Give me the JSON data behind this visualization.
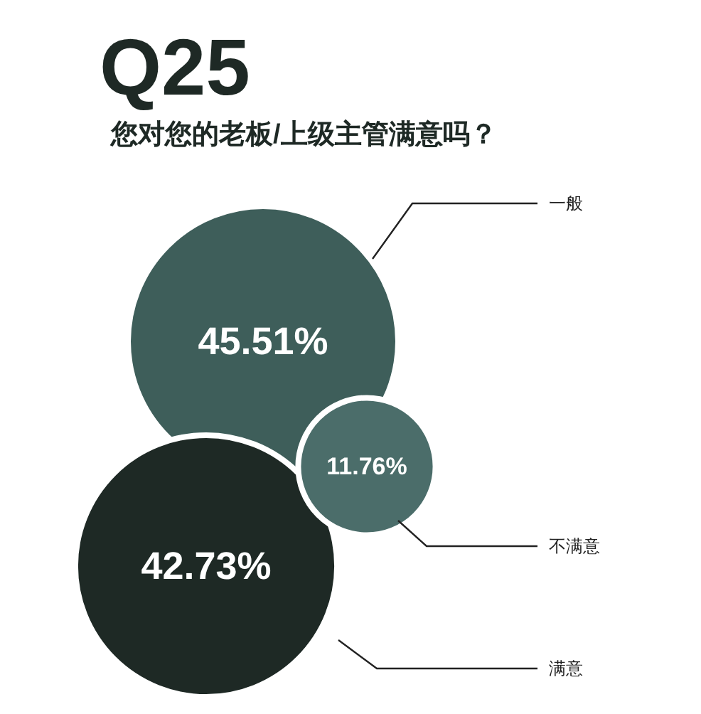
{
  "chart_data": {
    "type": "other",
    "title": "Q25",
    "subtitle": "您对您的老板/上级主管满意吗？",
    "categories": [
      "一般",
      "不满意",
      "满意"
    ],
    "values": [
      45.51,
      11.76,
      42.73
    ],
    "value_labels": [
      "45.51%",
      "11.76%",
      "42.73%"
    ],
    "colors": [
      "#3e5e5a",
      "#4b6d6a",
      "#1e2925"
    ]
  }
}
